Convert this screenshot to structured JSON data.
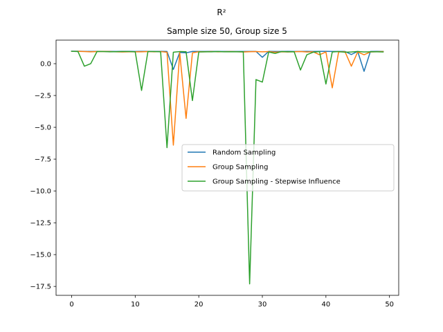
{
  "chart_data": {
    "type": "line",
    "suptitle": "R²",
    "title": "Sample size 50, Group size 5",
    "xlabel": "",
    "ylabel": "",
    "xlim": [
      -2.45,
      51.45
    ],
    "ylim": [
      -18.2,
      1.85
    ],
    "xticks": [
      0,
      10,
      20,
      30,
      40,
      50
    ],
    "yticks": [
      0.0,
      -2.5,
      -5.0,
      -7.5,
      -10.0,
      -12.5,
      -15.0,
      -17.5
    ],
    "ytick_labels": [
      "0.0",
      "−2.5",
      "−5.0",
      "−7.5",
      "−10.0",
      "−12.5",
      "−15.0",
      "−17.5"
    ],
    "grid": false,
    "legend_position": "center-right",
    "x": [
      0,
      1,
      2,
      3,
      4,
      5,
      6,
      7,
      8,
      9,
      10,
      11,
      12,
      13,
      14,
      15,
      16,
      17,
      18,
      19,
      20,
      21,
      22,
      23,
      24,
      25,
      26,
      27,
      28,
      29,
      30,
      31,
      32,
      33,
      34,
      35,
      36,
      37,
      38,
      39,
      40,
      41,
      42,
      43,
      44,
      45,
      46,
      47,
      48,
      49
    ],
    "series": [
      {
        "name": "Random Sampling",
        "color": "#1f77b4",
        "values": [
          0.98,
          0.98,
          0.97,
          0.96,
          0.97,
          0.97,
          0.97,
          0.96,
          0.97,
          0.97,
          0.96,
          0.97,
          0.97,
          0.96,
          0.97,
          0.96,
          -0.45,
          0.88,
          0.85,
          0.96,
          0.96,
          0.96,
          0.97,
          0.96,
          0.96,
          0.96,
          0.96,
          0.96,
          0.96,
          0.96,
          0.5,
          0.97,
          0.96,
          0.96,
          0.97,
          0.96,
          0.96,
          0.97,
          0.96,
          0.97,
          0.97,
          0.96,
          0.96,
          0.96,
          0.72,
          0.96,
          -0.6,
          0.96,
          0.97,
          0.96
        ]
      },
      {
        "name": "Group Sampling",
        "color": "#ff7f0e",
        "values": [
          0.97,
          0.97,
          0.95,
          0.93,
          0.95,
          0.96,
          0.95,
          0.93,
          0.92,
          0.93,
          0.93,
          0.93,
          0.95,
          0.93,
          0.95,
          0.9,
          -6.4,
          0.88,
          -4.3,
          0.85,
          0.94,
          0.93,
          0.95,
          0.93,
          0.94,
          0.95,
          0.94,
          0.92,
          0.94,
          0.95,
          0.93,
          0.95,
          0.9,
          0.93,
          0.92,
          0.94,
          0.95,
          0.92,
          0.93,
          0.7,
          0.92,
          -1.9,
          0.92,
          0.94,
          -0.2,
          0.92,
          0.7,
          0.92,
          0.94,
          0.95
        ]
      },
      {
        "name": "Group Sampling - Stepwise Influence",
        "color": "#2ca02c",
        "values": [
          0.97,
          0.95,
          -0.2,
          0.0,
          0.96,
          0.95,
          0.93,
          0.94,
          0.95,
          0.95,
          0.93,
          -2.1,
          0.95,
          0.95,
          0.93,
          -6.6,
          0.9,
          0.95,
          0.94,
          -2.9,
          0.92,
          0.93,
          0.93,
          0.95,
          0.93,
          0.94,
          0.93,
          0.94,
          -17.3,
          -1.25,
          -1.45,
          0.92,
          0.8,
          0.95,
          0.93,
          0.94,
          -0.5,
          0.7,
          0.9,
          0.95,
          -1.6,
          0.92,
          0.95,
          0.9,
          0.92,
          0.96,
          0.92,
          0.93,
          0.93,
          0.92
        ]
      }
    ]
  }
}
